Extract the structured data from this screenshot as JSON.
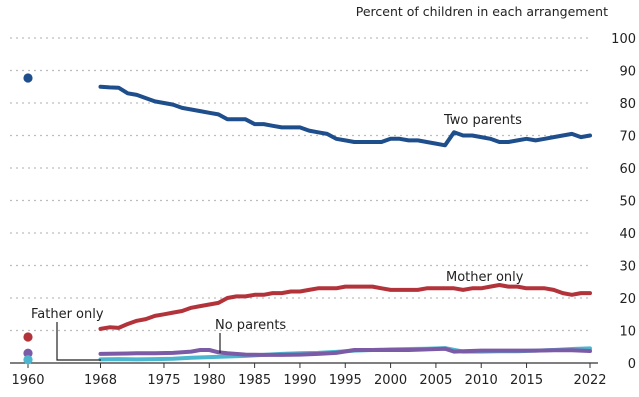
{
  "chart_data": {
    "type": "line",
    "title": "",
    "ylabel": "Percent of children in each arrangement",
    "xlabel": "",
    "ylim": [
      0,
      100
    ],
    "xlim": [
      1960,
      2022
    ],
    "grid": true,
    "x_ticks": [
      "1960",
      "1968",
      "1975",
      "1980",
      "1985",
      "1990",
      "1995",
      "2000",
      "2005",
      "2010",
      "2015",
      "2022"
    ],
    "y_ticks": [
      "0",
      "10",
      "20",
      "30",
      "40",
      "50",
      "60",
      "70",
      "80",
      "90",
      "100"
    ],
    "points_1960": [
      {
        "series": "Two parents",
        "y": 87.7
      },
      {
        "series": "Mother only",
        "y": 8.0
      },
      {
        "series": "No parents",
        "y": 3.0
      },
      {
        "series": "Father only",
        "y": 1.0
      }
    ],
    "series": [
      {
        "name": "Two parents",
        "color": "#1f4e8c",
        "x": [
          1968,
          1969,
          1970,
          1971,
          1972,
          1973,
          1974,
          1975,
          1976,
          1977,
          1978,
          1979,
          1980,
          1981,
          1982,
          1983,
          1984,
          1985,
          1986,
          1987,
          1988,
          1989,
          1990,
          1991,
          1992,
          1993,
          1994,
          1995,
          1996,
          1997,
          1998,
          1999,
          2000,
          2001,
          2002,
          2003,
          2004,
          2005,
          2006,
          2007,
          2008,
          2009,
          2010,
          2011,
          2012,
          2013,
          2014,
          2015,
          2016,
          2017,
          2018,
          2019,
          2020,
          2021,
          2022
        ],
        "y": [
          85,
          84.8,
          84.7,
          83,
          82.5,
          81.5,
          80.5,
          80,
          79.5,
          78.5,
          78,
          77.5,
          77,
          76.5,
          75,
          75,
          75,
          73.5,
          73.5,
          73,
          72.5,
          72.5,
          72.5,
          71.5,
          71,
          70.5,
          69,
          68.5,
          68,
          68,
          68,
          68,
          69,
          69,
          68.5,
          68.5,
          68,
          67.5,
          67,
          71,
          70,
          70,
          69.5,
          69,
          68,
          68,
          68.5,
          69,
          68.5,
          69,
          69.5,
          70,
          70.5,
          69.5,
          70
        ]
      },
      {
        "name": "Mother only",
        "color": "#b3333a",
        "x": [
          1968,
          1969,
          1970,
          1971,
          1972,
          1973,
          1974,
          1975,
          1976,
          1977,
          1978,
          1979,
          1980,
          1981,
          1982,
          1983,
          1984,
          1985,
          1986,
          1987,
          1988,
          1989,
          1990,
          1991,
          1992,
          1993,
          1994,
          1995,
          1996,
          1997,
          1998,
          1999,
          2000,
          2001,
          2002,
          2003,
          2004,
          2005,
          2006,
          2007,
          2008,
          2009,
          2010,
          2011,
          2012,
          2013,
          2014,
          2015,
          2016,
          2017,
          2018,
          2019,
          2020,
          2021,
          2022
        ],
        "y": [
          10.5,
          11,
          10.8,
          12,
          13,
          13.5,
          14.5,
          15,
          15.5,
          16,
          17,
          17.5,
          18,
          18.5,
          20,
          20.5,
          20.5,
          21,
          21,
          21.5,
          21.5,
          22,
          22,
          22.5,
          23,
          23,
          23,
          23.5,
          23.5,
          23.5,
          23.5,
          23,
          22.5,
          22.5,
          22.5,
          22.5,
          23,
          23,
          23,
          23,
          22.5,
          23,
          23,
          23.5,
          24,
          23.5,
          23.5,
          23,
          23,
          23,
          22.5,
          21.5,
          21,
          21.5,
          21.5
        ]
      },
      {
        "name": "Father only",
        "color": "#4cb6cf",
        "x": [
          1968,
          1970,
          1972,
          1974,
          1976,
          1978,
          1980,
          1982,
          1984,
          1986,
          1988,
          1990,
          1992,
          1994,
          1996,
          1998,
          2000,
          2002,
          2004,
          2006,
          2008,
          2010,
          2012,
          2014,
          2016,
          2018,
          2020,
          2022
        ],
        "y": [
          1.1,
          1.2,
          1.1,
          1.2,
          1.3,
          1.6,
          1.8,
          2.0,
          2.2,
          2.5,
          2.8,
          3.0,
          3.1,
          3.4,
          3.8,
          4.0,
          4.2,
          4.3,
          4.4,
          4.6,
          3.5,
          3.5,
          3.6,
          3.6,
          3.8,
          4.0,
          4.3,
          4.5
        ]
      },
      {
        "name": "No parents",
        "color": "#7b5aa6",
        "x": [
          1968,
          1970,
          1972,
          1974,
          1976,
          1978,
          1979,
          1980,
          1981,
          1982,
          1984,
          1986,
          1988,
          1990,
          1992,
          1994,
          1996,
          1998,
          2000,
          2002,
          2004,
          2006,
          2007,
          2008,
          2010,
          2012,
          2014,
          2016,
          2018,
          2020,
          2022
        ],
        "y": [
          2.8,
          2.9,
          3.0,
          3.0,
          3.1,
          3.5,
          4.0,
          4.0,
          3.3,
          3.0,
          2.6,
          2.5,
          2.5,
          2.6,
          2.8,
          3.1,
          4.0,
          4.0,
          4.0,
          4.0,
          4.2,
          4.4,
          3.5,
          3.6,
          3.8,
          3.8,
          3.8,
          3.8,
          3.9,
          3.9,
          3.7
        ]
      }
    ],
    "annotations": [
      {
        "text": "Two parents",
        "series": "Two parents"
      },
      {
        "text": "Mother only",
        "series": "Mother only"
      },
      {
        "text": "No parents",
        "series": "No parents"
      },
      {
        "text": "Father only",
        "series": "Father only"
      }
    ]
  }
}
